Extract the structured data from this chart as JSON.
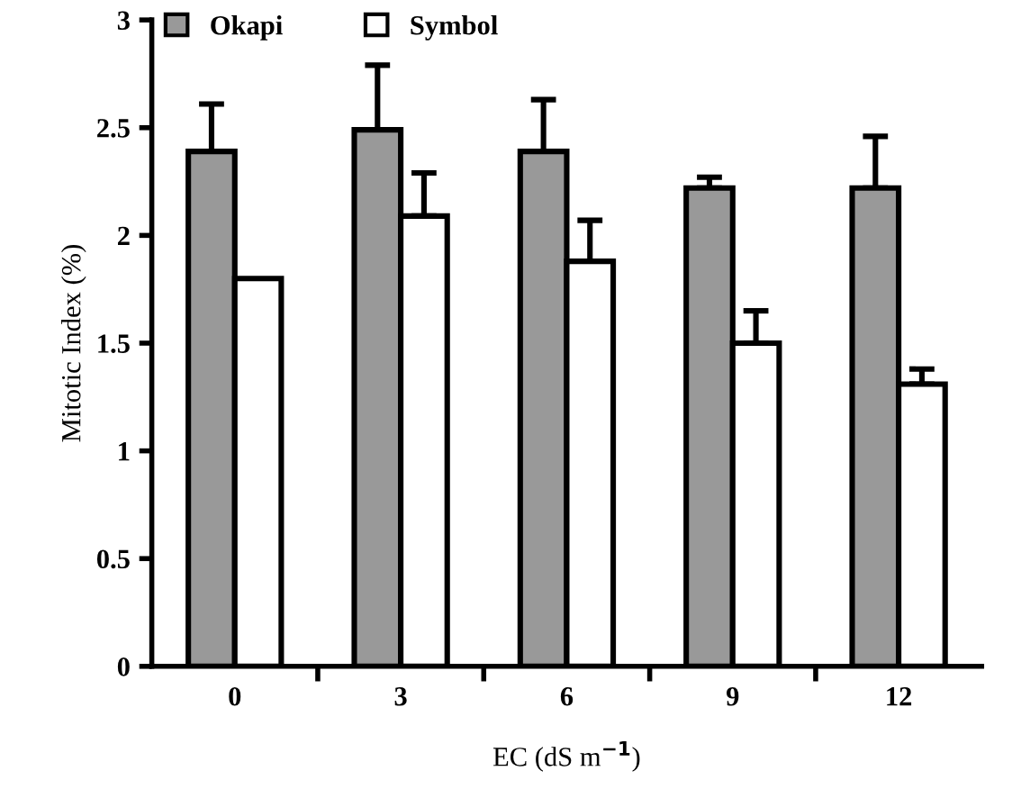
{
  "chart_data": {
    "type": "bar",
    "xlabel": "EC (dS m$^{−1}$)",
    "ylabel": "Mitotic Index (%)",
    "categories": [
      "0",
      "3",
      "6",
      "9",
      "12"
    ],
    "series": [
      {
        "name": "Okapi",
        "color": "#999999",
        "values": [
          2.39,
          2.49,
          2.39,
          2.22,
          2.22
        ],
        "errors": [
          0.22,
          0.3,
          0.24,
          0.05,
          0.24
        ]
      },
      {
        "name": "Symbol",
        "color": "#ffffff",
        "values": [
          1.8,
          2.09,
          1.88,
          1.5,
          1.31
        ],
        "errors": [
          null,
          0.2,
          0.19,
          0.15,
          0.07
        ]
      }
    ],
    "ylim": [
      0,
      3
    ],
    "yticks": [
      0,
      0.5,
      1,
      1.5,
      2,
      2.5,
      3
    ],
    "legend": "top left",
    "grid": false
  }
}
